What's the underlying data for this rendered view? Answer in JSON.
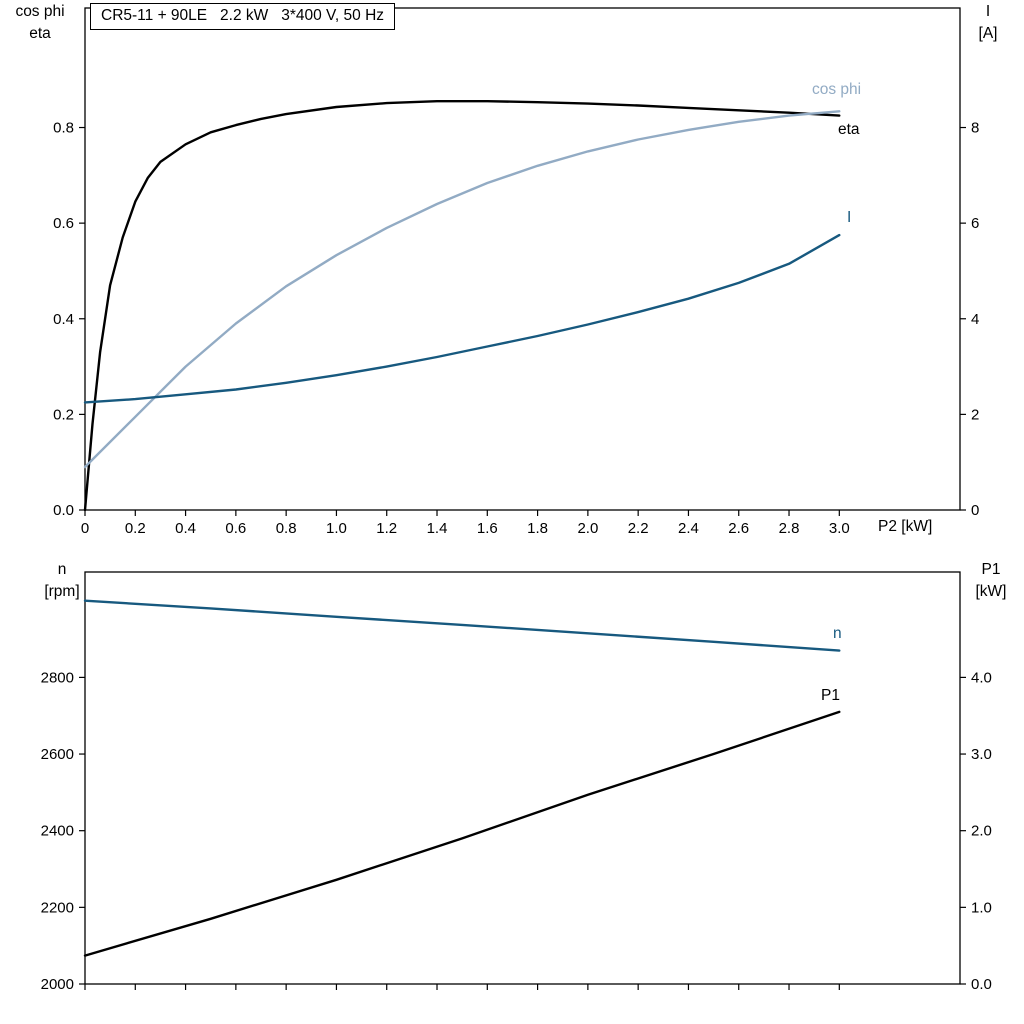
{
  "title_box": {
    "text": "CR5-11 + 90LE   2.2 kW   3*400 V, 50 Hz"
  },
  "axis_labels": {
    "top_left_1": "cos phi",
    "top_left_2": "eta",
    "top_right_1": "I",
    "top_right_2": "[A]",
    "x_label": "P2 [kW]",
    "bottom_left_1": "n",
    "bottom_left_2": "[rpm]",
    "bottom_right_1": "P1",
    "bottom_right_2": "[kW]"
  },
  "curve_labels": {
    "cos_phi": "cos phi",
    "eta": "eta",
    "current": "I",
    "speed": "n",
    "power": "P1"
  },
  "colors": {
    "black": "#000000",
    "dark_blue": "#17597f",
    "light_blue": "#92abc4",
    "frame": "#000000"
  },
  "chart_data": [
    {
      "type": "line",
      "title": "CR5-11 + 90LE 2.2 kW 3*400 V, 50 Hz",
      "xlabel": "P2 [kW]",
      "ylabel_left": "cos phi / eta",
      "ylabel_right": "I [A]",
      "xlim": [
        0,
        3.48
      ],
      "ylim_left": [
        0,
        1.05
      ],
      "ylim_right": [
        0,
        10.5
      ],
      "x_ticks": [
        0,
        0.2,
        0.4,
        0.6,
        0.8,
        1.0,
        1.2,
        1.4,
        1.6,
        1.8,
        2.0,
        2.2,
        2.4,
        2.6,
        2.8,
        3.0
      ],
      "x_tick_labels": [
        "0",
        "0.2",
        "0.4",
        "0.6",
        "0.8",
        "1.0",
        "1.2",
        "1.4",
        "1.6",
        "1.8",
        "2.0",
        "2.2",
        "2.4",
        "2.6",
        "2.8",
        "3.0"
      ],
      "left_ticks": [
        0,
        0.2,
        0.4,
        0.6,
        0.8
      ],
      "left_tick_labels": [
        "0.0",
        "0.2",
        "0.4",
        "0.6",
        "0.8"
      ],
      "right_ticks": [
        0,
        2,
        4,
        6,
        8
      ],
      "right_tick_labels": [
        "0",
        "2",
        "4",
        "6",
        "8"
      ],
      "series": [
        {
          "id": "eta",
          "name": "eta",
          "axis": "left",
          "color": "black",
          "points": [
            [
              0,
              0
            ],
            [
              0.03,
              0.18
            ],
            [
              0.06,
              0.33
            ],
            [
              0.1,
              0.47
            ],
            [
              0.15,
              0.57
            ],
            [
              0.2,
              0.645
            ],
            [
              0.25,
              0.695
            ],
            [
              0.3,
              0.728
            ],
            [
              0.4,
              0.765
            ],
            [
              0.5,
              0.79
            ],
            [
              0.6,
              0.805
            ],
            [
              0.7,
              0.818
            ],
            [
              0.8,
              0.828
            ],
            [
              1.0,
              0.843
            ],
            [
              1.2,
              0.851
            ],
            [
              1.4,
              0.855
            ],
            [
              1.6,
              0.855
            ],
            [
              1.8,
              0.853
            ],
            [
              2.0,
              0.85
            ],
            [
              2.2,
              0.846
            ],
            [
              2.4,
              0.841
            ],
            [
              2.6,
              0.836
            ],
            [
              2.8,
              0.831
            ],
            [
              3.0,
              0.825
            ]
          ]
        },
        {
          "id": "cos-phi",
          "name": "cos phi",
          "axis": "left",
          "color": "light_blue",
          "points": [
            [
              0,
              0.09
            ],
            [
              0.2,
              0.195
            ],
            [
              0.4,
              0.3
            ],
            [
              0.6,
              0.39
            ],
            [
              0.8,
              0.468
            ],
            [
              1.0,
              0.533
            ],
            [
              1.2,
              0.59
            ],
            [
              1.4,
              0.64
            ],
            [
              1.6,
              0.684
            ],
            [
              1.8,
              0.72
            ],
            [
              2.0,
              0.75
            ],
            [
              2.2,
              0.775
            ],
            [
              2.4,
              0.795
            ],
            [
              2.6,
              0.812
            ],
            [
              2.8,
              0.825
            ],
            [
              3.0,
              0.834
            ]
          ]
        },
        {
          "id": "current",
          "name": "I",
          "axis": "right",
          "color": "dark_blue",
          "points": [
            [
              0,
              2.25
            ],
            [
              0.2,
              2.32
            ],
            [
              0.4,
              2.42
            ],
            [
              0.6,
              2.52
            ],
            [
              0.8,
              2.66
            ],
            [
              1.0,
              2.82
            ],
            [
              1.2,
              3.0
            ],
            [
              1.4,
              3.2
            ],
            [
              1.6,
              3.42
            ],
            [
              1.8,
              3.64
            ],
            [
              2.0,
              3.88
            ],
            [
              2.2,
              4.14
            ],
            [
              2.4,
              4.42
            ],
            [
              2.6,
              4.75
            ],
            [
              2.8,
              5.15
            ],
            [
              3.0,
              5.75
            ]
          ]
        }
      ]
    },
    {
      "type": "line",
      "title": "",
      "xlabel": "",
      "ylabel_left": "n [rpm]",
      "ylabel_right": "P1 [kW]",
      "xlim": [
        0,
        3.48
      ],
      "ylim_left": [
        2000,
        3075
      ],
      "ylim_right": [
        0,
        5.375
      ],
      "x_ticks": [
        0,
        0.2,
        0.4,
        0.6,
        0.8,
        1.0,
        1.2,
        1.4,
        1.6,
        1.8,
        2.0,
        2.2,
        2.4,
        2.6,
        2.8,
        3.0
      ],
      "x_tick_labels": [
        "",
        "",
        "",
        "",
        "",
        "",
        "",
        "",
        "",
        "",
        "",
        "",
        "",
        "",
        "",
        ""
      ],
      "left_ticks": [
        2000,
        2200,
        2400,
        2600,
        2800
      ],
      "left_tick_labels": [
        "2000",
        "2200",
        "2400",
        "2600",
        "2800"
      ],
      "right_ticks": [
        0,
        1,
        2,
        3,
        4
      ],
      "right_tick_labels": [
        "0.0",
        "1.0",
        "2.0",
        "3.0",
        "4.0"
      ],
      "series": [
        {
          "id": "speed",
          "name": "n",
          "axis": "left",
          "color": "dark_blue",
          "points": [
            [
              0,
              3000
            ],
            [
              0.5,
              2980
            ],
            [
              1.0,
              2958
            ],
            [
              1.5,
              2937
            ],
            [
              2.0,
              2915
            ],
            [
              2.5,
              2893
            ],
            [
              3.0,
              2870
            ]
          ]
        },
        {
          "id": "power-p1",
          "name": "P1",
          "axis": "right",
          "color": "black",
          "points": [
            [
              0,
              0.37
            ],
            [
              0.5,
              0.85
            ],
            [
              1.0,
              1.36
            ],
            [
              1.5,
              1.9
            ],
            [
              2.0,
              2.47
            ],
            [
              2.5,
              3.0
            ],
            [
              3.0,
              3.55
            ]
          ]
        }
      ]
    }
  ]
}
